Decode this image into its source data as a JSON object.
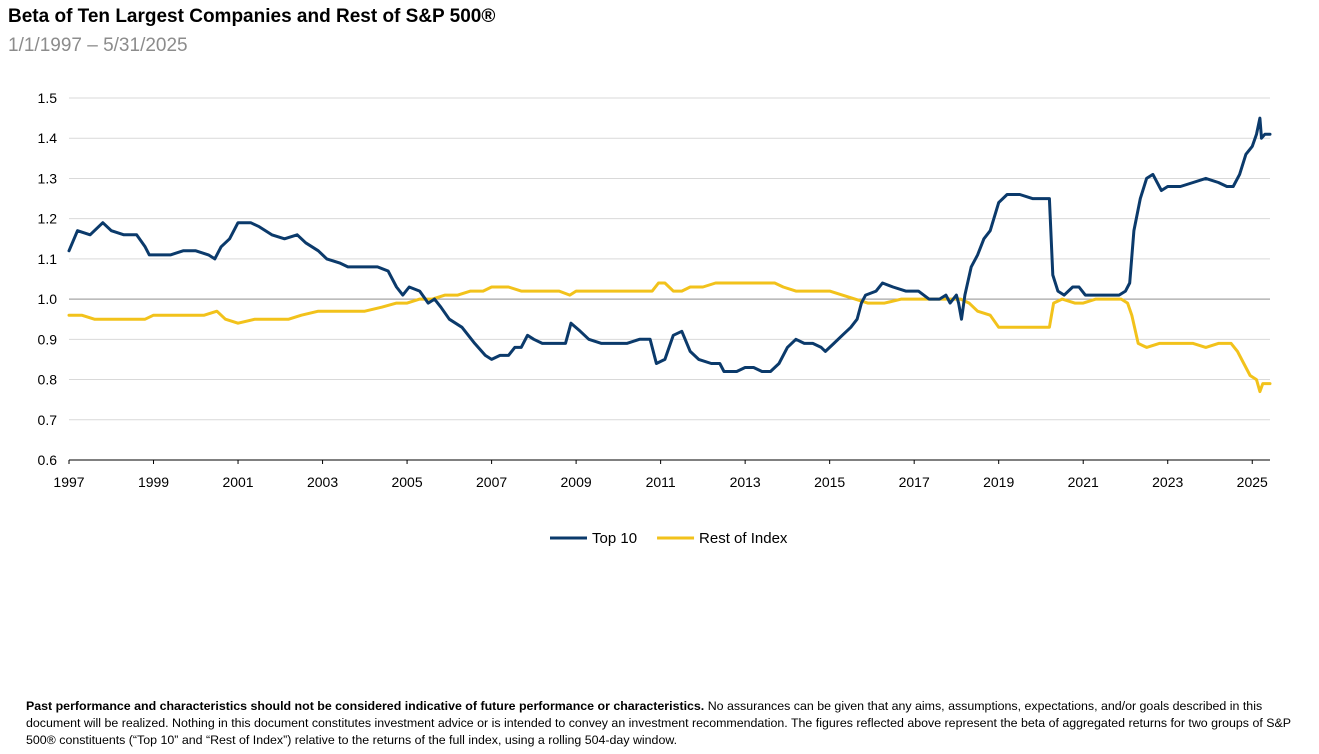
{
  "header": {
    "title": "Beta of Ten Largest Companies and Rest of S&P 500®",
    "subtitle": "1/1/1997 – 5/31/2025"
  },
  "disclaimer": {
    "bold": "Past performance and characteristics should not be considered indicative of future performance or characteristics.",
    "text": "  No assurances can be given that any aims, assumptions, expectations, and/or goals described in this document will be realized.  Nothing in this document constitutes investment advice or is intended to convey an investment recommendation.  The figures reflected above represent the beta of aggregated returns for two groups of S&P 500® constituents (“Top 10” and “Rest of Index”) relative to the returns of the full index, using a rolling 504-day window."
  },
  "chart_data": {
    "type": "line",
    "title": "Beta of Ten Largest Companies and Rest of S&P 500®",
    "subtitle": "1/1/1997 – 5/31/2025",
    "xlim": [
      1997,
      2025.42
    ],
    "ylim": [
      0.6,
      1.5
    ],
    "x_ticks": [
      "1997",
      "1999",
      "2001",
      "2003",
      "2005",
      "2007",
      "2009",
      "2011",
      "2013",
      "2015",
      "2017",
      "2019",
      "2021",
      "2023",
      "2025"
    ],
    "y_ticks": [
      "0.6",
      "0.7",
      "0.8",
      "0.9",
      "1.0",
      "1.1",
      "1.2",
      "1.3",
      "1.4",
      "1.5"
    ],
    "grid": true,
    "reference_line": 1.0,
    "legend_position": "bottom-center",
    "series": [
      {
        "name": "Top 10",
        "color": "#0b3a6b",
        "points": [
          [
            1997.0,
            1.12
          ],
          [
            1997.2,
            1.17
          ],
          [
            1997.5,
            1.16
          ],
          [
            1997.8,
            1.19
          ],
          [
            1998.0,
            1.17
          ],
          [
            1998.3,
            1.16
          ],
          [
            1998.6,
            1.16
          ],
          [
            1998.8,
            1.13
          ],
          [
            1998.9,
            1.11
          ],
          [
            1999.2,
            1.11
          ],
          [
            1999.4,
            1.11
          ],
          [
            1999.7,
            1.12
          ],
          [
            2000.0,
            1.12
          ],
          [
            2000.3,
            1.11
          ],
          [
            2000.45,
            1.1
          ],
          [
            2000.6,
            1.13
          ],
          [
            2000.8,
            1.15
          ],
          [
            2001.0,
            1.19
          ],
          [
            2001.3,
            1.19
          ],
          [
            2001.5,
            1.18
          ],
          [
            2001.8,
            1.16
          ],
          [
            2002.1,
            1.15
          ],
          [
            2002.4,
            1.16
          ],
          [
            2002.6,
            1.14
          ],
          [
            2002.9,
            1.12
          ],
          [
            2003.1,
            1.1
          ],
          [
            2003.4,
            1.09
          ],
          [
            2003.6,
            1.08
          ],
          [
            2004.0,
            1.08
          ],
          [
            2004.3,
            1.08
          ],
          [
            2004.55,
            1.07
          ],
          [
            2004.75,
            1.03
          ],
          [
            2004.9,
            1.01
          ],
          [
            2005.05,
            1.03
          ],
          [
            2005.3,
            1.02
          ],
          [
            2005.5,
            0.99
          ],
          [
            2005.65,
            1.0
          ],
          [
            2005.8,
            0.98
          ],
          [
            2006.0,
            0.95
          ],
          [
            2006.3,
            0.93
          ],
          [
            2006.6,
            0.89
          ],
          [
            2006.85,
            0.86
          ],
          [
            2007.0,
            0.85
          ],
          [
            2007.2,
            0.86
          ],
          [
            2007.4,
            0.86
          ],
          [
            2007.55,
            0.88
          ],
          [
            2007.7,
            0.88
          ],
          [
            2007.85,
            0.91
          ],
          [
            2008.0,
            0.9
          ],
          [
            2008.2,
            0.89
          ],
          [
            2008.5,
            0.89
          ],
          [
            2008.75,
            0.89
          ],
          [
            2008.88,
            0.94
          ],
          [
            2009.1,
            0.92
          ],
          [
            2009.3,
            0.9
          ],
          [
            2009.6,
            0.89
          ],
          [
            2009.9,
            0.89
          ],
          [
            2010.2,
            0.89
          ],
          [
            2010.5,
            0.9
          ],
          [
            2010.75,
            0.9
          ],
          [
            2010.9,
            0.84
          ],
          [
            2011.1,
            0.85
          ],
          [
            2011.3,
            0.91
          ],
          [
            2011.5,
            0.92
          ],
          [
            2011.7,
            0.87
          ],
          [
            2011.9,
            0.85
          ],
          [
            2012.2,
            0.84
          ],
          [
            2012.4,
            0.84
          ],
          [
            2012.5,
            0.82
          ],
          [
            2012.8,
            0.82
          ],
          [
            2013.0,
            0.83
          ],
          [
            2013.2,
            0.83
          ],
          [
            2013.4,
            0.82
          ],
          [
            2013.6,
            0.82
          ],
          [
            2013.8,
            0.84
          ],
          [
            2014.0,
            0.88
          ],
          [
            2014.2,
            0.9
          ],
          [
            2014.4,
            0.89
          ],
          [
            2014.6,
            0.89
          ],
          [
            2014.8,
            0.88
          ],
          [
            2014.9,
            0.87
          ],
          [
            2015.1,
            0.89
          ],
          [
            2015.3,
            0.91
          ],
          [
            2015.5,
            0.93
          ],
          [
            2015.65,
            0.95
          ],
          [
            2015.75,
            0.99
          ],
          [
            2015.85,
            1.01
          ],
          [
            2016.1,
            1.02
          ],
          [
            2016.25,
            1.04
          ],
          [
            2016.5,
            1.03
          ],
          [
            2016.8,
            1.02
          ],
          [
            2017.1,
            1.02
          ],
          [
            2017.35,
            1.0
          ],
          [
            2017.6,
            1.0
          ],
          [
            2017.75,
            1.01
          ],
          [
            2017.85,
            0.99
          ],
          [
            2018.0,
            1.01
          ],
          [
            2018.05,
            0.99
          ],
          [
            2018.12,
            0.95
          ],
          [
            2018.2,
            1.01
          ],
          [
            2018.35,
            1.08
          ],
          [
            2018.5,
            1.11
          ],
          [
            2018.65,
            1.15
          ],
          [
            2018.8,
            1.17
          ],
          [
            2019.0,
            1.24
          ],
          [
            2019.2,
            1.26
          ],
          [
            2019.5,
            1.26
          ],
          [
            2019.8,
            1.25
          ],
          [
            2020.1,
            1.25
          ],
          [
            2020.2,
            1.25
          ],
          [
            2020.28,
            1.06
          ],
          [
            2020.4,
            1.02
          ],
          [
            2020.55,
            1.01
          ],
          [
            2020.75,
            1.03
          ],
          [
            2020.9,
            1.03
          ],
          [
            2021.05,
            1.01
          ],
          [
            2021.3,
            1.01
          ],
          [
            2021.6,
            1.01
          ],
          [
            2021.85,
            1.01
          ],
          [
            2022.0,
            1.02
          ],
          [
            2022.1,
            1.04
          ],
          [
            2022.2,
            1.17
          ],
          [
            2022.35,
            1.25
          ],
          [
            2022.5,
            1.3
          ],
          [
            2022.65,
            1.31
          ],
          [
            2022.85,
            1.27
          ],
          [
            2023.0,
            1.28
          ],
          [
            2023.3,
            1.28
          ],
          [
            2023.6,
            1.29
          ],
          [
            2023.9,
            1.3
          ],
          [
            2024.2,
            1.29
          ],
          [
            2024.4,
            1.28
          ],
          [
            2024.55,
            1.28
          ],
          [
            2024.7,
            1.31
          ],
          [
            2024.85,
            1.36
          ],
          [
            2025.0,
            1.38
          ],
          [
            2025.1,
            1.41
          ],
          [
            2025.18,
            1.45
          ],
          [
            2025.22,
            1.4
          ],
          [
            2025.3,
            1.41
          ],
          [
            2025.42,
            1.41
          ]
        ]
      },
      {
        "name": "Rest of Index",
        "color": "#f2c21b",
        "points": [
          [
            1997.0,
            0.96
          ],
          [
            1997.3,
            0.96
          ],
          [
            1997.6,
            0.95
          ],
          [
            1998.0,
            0.95
          ],
          [
            1998.5,
            0.95
          ],
          [
            1998.8,
            0.95
          ],
          [
            1999.0,
            0.96
          ],
          [
            1999.4,
            0.96
          ],
          [
            1999.8,
            0.96
          ],
          [
            2000.2,
            0.96
          ],
          [
            2000.5,
            0.97
          ],
          [
            2000.7,
            0.95
          ],
          [
            2001.0,
            0.94
          ],
          [
            2001.4,
            0.95
          ],
          [
            2001.8,
            0.95
          ],
          [
            2002.2,
            0.95
          ],
          [
            2002.5,
            0.96
          ],
          [
            2002.9,
            0.97
          ],
          [
            2003.3,
            0.97
          ],
          [
            2003.7,
            0.97
          ],
          [
            2004.0,
            0.97
          ],
          [
            2004.4,
            0.98
          ],
          [
            2004.75,
            0.99
          ],
          [
            2005.0,
            0.99
          ],
          [
            2005.3,
            1.0
          ],
          [
            2005.6,
            1.0
          ],
          [
            2005.9,
            1.01
          ],
          [
            2006.2,
            1.01
          ],
          [
            2006.5,
            1.02
          ],
          [
            2006.8,
            1.02
          ],
          [
            2007.0,
            1.03
          ],
          [
            2007.4,
            1.03
          ],
          [
            2007.7,
            1.02
          ],
          [
            2008.0,
            1.02
          ],
          [
            2008.3,
            1.02
          ],
          [
            2008.6,
            1.02
          ],
          [
            2008.85,
            1.01
          ],
          [
            2009.0,
            1.02
          ],
          [
            2009.4,
            1.02
          ],
          [
            2009.8,
            1.02
          ],
          [
            2010.2,
            1.02
          ],
          [
            2010.6,
            1.02
          ],
          [
            2010.8,
            1.02
          ],
          [
            2010.95,
            1.04
          ],
          [
            2011.1,
            1.04
          ],
          [
            2011.3,
            1.02
          ],
          [
            2011.5,
            1.02
          ],
          [
            2011.7,
            1.03
          ],
          [
            2012.0,
            1.03
          ],
          [
            2012.3,
            1.04
          ],
          [
            2012.6,
            1.04
          ],
          [
            2013.0,
            1.04
          ],
          [
            2013.4,
            1.04
          ],
          [
            2013.7,
            1.04
          ],
          [
            2013.9,
            1.03
          ],
          [
            2014.2,
            1.02
          ],
          [
            2014.6,
            1.02
          ],
          [
            2015.0,
            1.02
          ],
          [
            2015.3,
            1.01
          ],
          [
            2015.6,
            1.0
          ],
          [
            2015.9,
            0.99
          ],
          [
            2016.3,
            0.99
          ],
          [
            2016.7,
            1.0
          ],
          [
            2017.0,
            1.0
          ],
          [
            2017.4,
            1.0
          ],
          [
            2017.8,
            1.0
          ],
          [
            2018.1,
            1.0
          ],
          [
            2018.3,
            0.99
          ],
          [
            2018.5,
            0.97
          ],
          [
            2018.8,
            0.96
          ],
          [
            2019.0,
            0.93
          ],
          [
            2019.4,
            0.93
          ],
          [
            2019.8,
            0.93
          ],
          [
            2020.1,
            0.93
          ],
          [
            2020.2,
            0.93
          ],
          [
            2020.3,
            0.99
          ],
          [
            2020.5,
            1.0
          ],
          [
            2020.8,
            0.99
          ],
          [
            2021.0,
            0.99
          ],
          [
            2021.3,
            1.0
          ],
          [
            2021.6,
            1.0
          ],
          [
            2021.9,
            1.0
          ],
          [
            2022.05,
            0.99
          ],
          [
            2022.15,
            0.96
          ],
          [
            2022.3,
            0.89
          ],
          [
            2022.5,
            0.88
          ],
          [
            2022.8,
            0.89
          ],
          [
            2023.0,
            0.89
          ],
          [
            2023.3,
            0.89
          ],
          [
            2023.6,
            0.89
          ],
          [
            2023.9,
            0.88
          ],
          [
            2024.2,
            0.89
          ],
          [
            2024.5,
            0.89
          ],
          [
            2024.65,
            0.87
          ],
          [
            2024.8,
            0.84
          ],
          [
            2024.95,
            0.81
          ],
          [
            2025.1,
            0.8
          ],
          [
            2025.18,
            0.77
          ],
          [
            2025.25,
            0.79
          ],
          [
            2025.42,
            0.79
          ]
        ]
      }
    ]
  }
}
